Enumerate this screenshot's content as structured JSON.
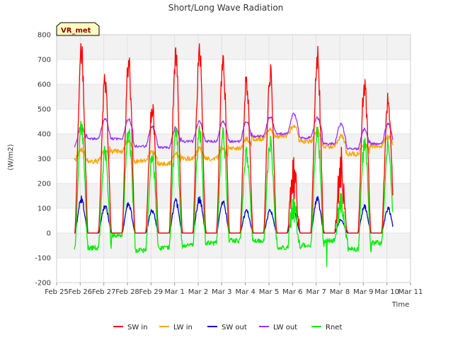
{
  "chart_data": {
    "type": "line",
    "title": "Short/Long Wave Radiation",
    "xlabel": "Time",
    "ylabel": "(W/m2)",
    "badge": "VR_met",
    "ylim": [
      -200,
      800
    ],
    "yticks": [
      -200,
      -100,
      0,
      100,
      200,
      300,
      400,
      500,
      600,
      700,
      800
    ],
    "xlim": [
      0,
      15
    ],
    "x_tick_labels": [
      "Feb 25",
      "Feb 26",
      "Feb 27",
      "Feb 28",
      "Feb 29",
      "Mar 1",
      "Mar 2",
      "Mar 3",
      "Mar 4",
      "Mar 5",
      "Mar 6",
      "Mar 7",
      "Mar 8",
      "Mar 9",
      "Mar 10",
      "Mar 11"
    ],
    "grid": true,
    "legend_position": "bottom",
    "x_unit": "days since Feb 25",
    "x_start": 0.75,
    "x_end": 14.25,
    "daily_peaks": {
      "SW in": [
        790,
        650,
        740,
        550,
        770,
        780,
        745,
        650,
        700,
        330,
        760,
        350,
        650,
        570
      ],
      "SW out": [
        150,
        120,
        130,
        100,
        140,
        150,
        140,
        100,
        100,
        90,
        150,
        60,
        120,
        110
      ],
      "Rnet": [
        475,
        350,
        440,
        350,
        450,
        450,
        430,
        350,
        400,
        175,
        450,
        180,
        400,
        380
      ]
    },
    "daily_night": {
      "LW in": [
        295,
        290,
        330,
        290,
        280,
        300,
        300,
        340,
        380,
        390,
        370,
        350,
        320,
        350
      ],
      "LW out": [
        350,
        380,
        380,
        350,
        345,
        370,
        370,
        370,
        390,
        400,
        385,
        360,
        340,
        360
      ],
      "Rnet": [
        -60,
        -60,
        -10,
        -70,
        -60,
        -50,
        -40,
        -30,
        -30,
        -60,
        -50,
        -30,
        -65,
        -40
      ]
    },
    "series": [
      {
        "name": "SW in",
        "color": "#ff0000"
      },
      {
        "name": "LW in",
        "color": "#ffa500"
      },
      {
        "name": "SW out",
        "color": "#0000cd"
      },
      {
        "name": "LW out",
        "color": "#9b30ff"
      },
      {
        "name": "Rnet",
        "color": "#00ee00"
      }
    ]
  }
}
